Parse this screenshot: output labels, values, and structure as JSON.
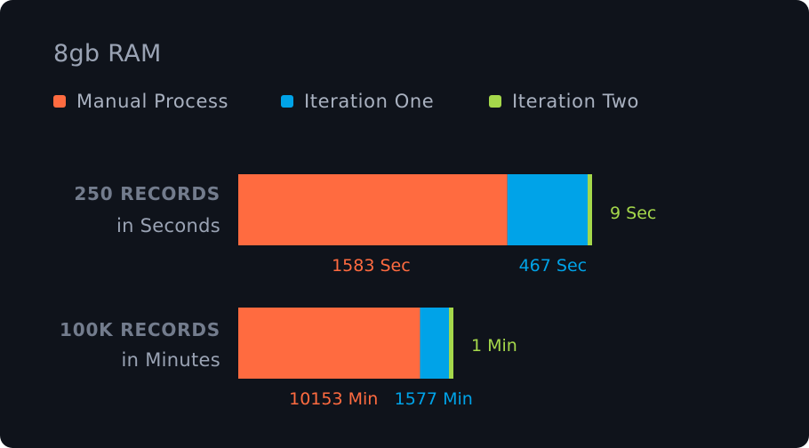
{
  "title": "8gb RAM",
  "colors": {
    "manual": "#ff6b40",
    "iteration_one": "#00a3e8",
    "iteration_two": "#a5d84b",
    "background": "#0f131b"
  },
  "legend": [
    {
      "label": "Manual Process",
      "color": "#ff6b40"
    },
    {
      "label": "Iteration One",
      "color": "#00a3e8"
    },
    {
      "label": "Iteration Two",
      "color": "#a5d84b"
    }
  ],
  "chart_data": {
    "type": "bar",
    "orientation": "horizontal",
    "stacked": true,
    "title": "8gb RAM",
    "legend_position": "top-left",
    "grid": false,
    "series": [
      {
        "name": "Manual Process",
        "color": "#ff6b40"
      },
      {
        "name": "Iteration One",
        "color": "#00a3e8"
      },
      {
        "name": "Iteration Two",
        "color": "#a5d84b"
      }
    ],
    "rows": [
      {
        "label": "250 RECORDS",
        "sublabel": "in Seconds",
        "values": [
          1583,
          467,
          9
        ],
        "value_labels": [
          "1583 Sec",
          "467 Sec",
          "9 Sec"
        ]
      },
      {
        "label": "100K RECORDS",
        "sublabel": "in Minutes",
        "values": [
          10153,
          1577,
          1
        ],
        "value_labels": [
          "10153 Min",
          "1577 Min",
          "1 Min"
        ]
      }
    ]
  }
}
